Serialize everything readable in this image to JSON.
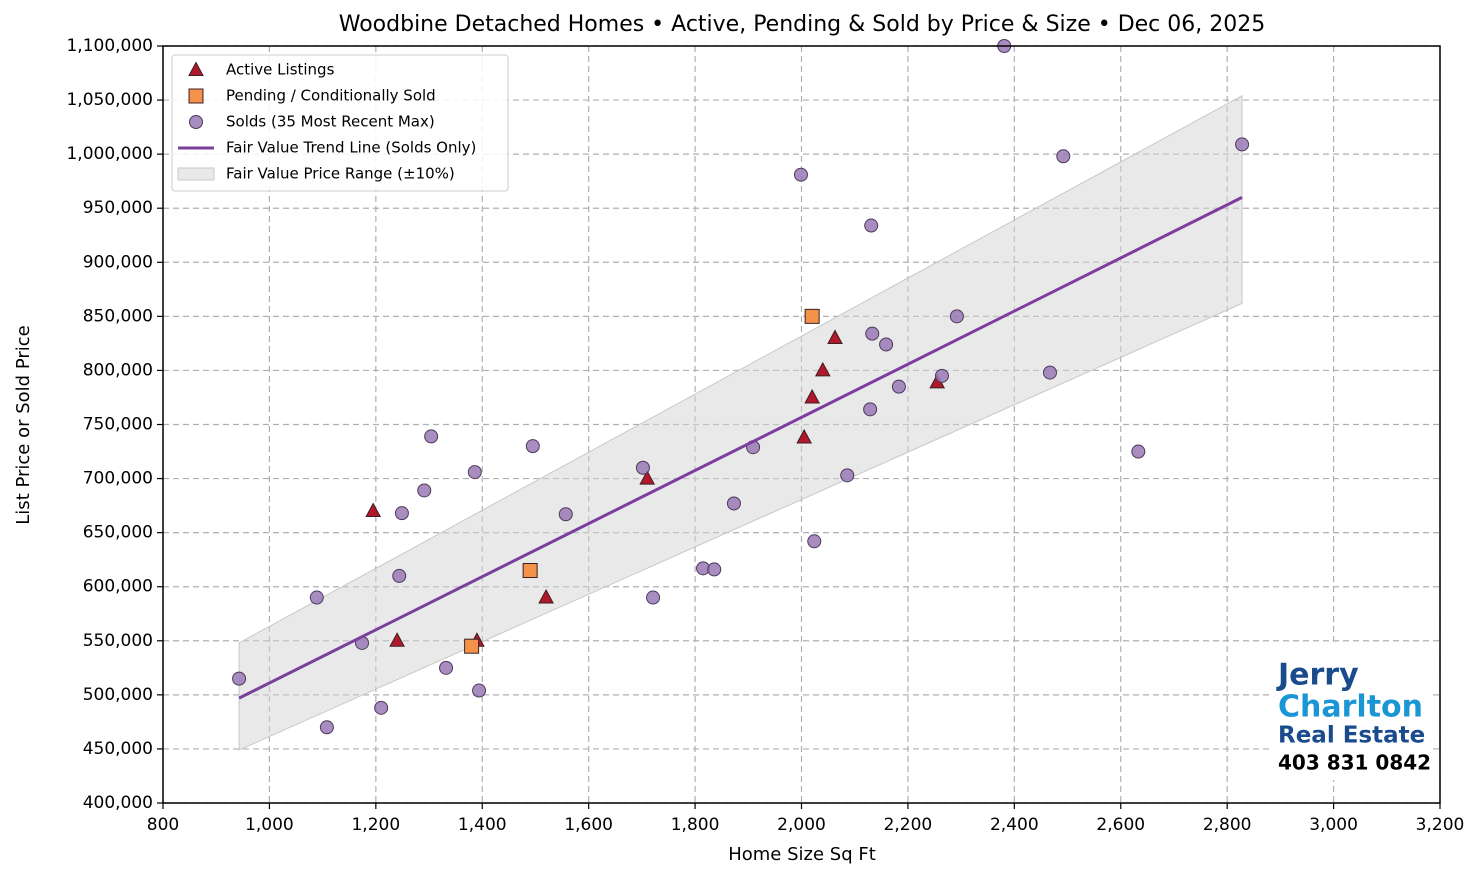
{
  "chart_data": {
    "type": "scatter",
    "title": "Woodbine Detached Homes • Active, Pending & Sold by Price & Size • Dec 06, 2025",
    "x_label": "Home Size Sq Ft",
    "y_label": "List Price or Sold Price",
    "xlim": [
      800,
      3200
    ],
    "ylim": [
      400000,
      1100000
    ],
    "xticks": [
      800,
      {
        "value": 1000,
        "label": "1,000"
      },
      {
        "value": 1200,
        "label": "1,200"
      },
      {
        "value": 1400,
        "label": "1,400"
      },
      {
        "value": 1600,
        "label": "1,600"
      },
      {
        "value": 1800,
        "label": "1,800"
      },
      {
        "value": 2000,
        "label": "2,000"
      },
      {
        "value": 2200,
        "label": "2,200"
      },
      {
        "value": 2400,
        "label": "2,400"
      },
      {
        "value": 2600,
        "label": "2,600"
      },
      {
        "value": 2800,
        "label": "2,800"
      },
      {
        "value": 3000,
        "label": "3,000"
      },
      {
        "value": 3200,
        "label": "3,200"
      }
    ],
    "yticks": [
      {
        "value": 400000,
        "label": "400,000"
      },
      {
        "value": 450000,
        "label": "450,000"
      },
      {
        "value": 500000,
        "label": "500,000"
      },
      {
        "value": 550000,
        "label": "550,000"
      },
      {
        "value": 600000,
        "label": "600,000"
      },
      {
        "value": 650000,
        "label": "650,000"
      },
      {
        "value": 700000,
        "label": "700,000"
      },
      {
        "value": 750000,
        "label": "750,000"
      },
      {
        "value": 800000,
        "label": "800,000"
      },
      {
        "value": 850000,
        "label": "850,000"
      },
      {
        "value": 900000,
        "label": "900,000"
      },
      {
        "value": 950000,
        "label": "950,000"
      },
      {
        "value": 1000000,
        "label": "1,000,000"
      },
      {
        "value": 1050000,
        "label": "1,050,000"
      },
      {
        "value": 1100000,
        "label": "1,100,000"
      }
    ],
    "grid": true,
    "legend": "upper left",
    "series": [
      {
        "name": "Active Listings",
        "color": "#b2182b",
        "marker": "triangle",
        "x": [
          1195,
          1240,
          1390,
          1520,
          1710,
          2005,
          2020,
          2040,
          2063,
          2255
        ],
        "values": [
          670000,
          550000,
          550000,
          590000,
          700000,
          738000,
          775000,
          800000,
          830000,
          789000
        ]
      },
      {
        "name": "Pending / Conditionally Sold",
        "color": "#f4924a",
        "marker": "square",
        "x": [
          2020,
          1490,
          1380
        ],
        "values": [
          850000,
          615000,
          545000
        ]
      },
      {
        "name": "Solds (35 Most Recent Max)",
        "color": "#9b79b5",
        "marker": "circle",
        "x": [
          943,
          1108,
          1089,
          1174,
          1210,
          1244,
          1249,
          1291,
          1304,
          1332,
          1386,
          1394,
          1495,
          1557,
          1702,
          1721,
          1815,
          1836,
          1873,
          1909,
          1999,
          2024,
          2086,
          2129,
          2131,
          2133,
          2159,
          2183,
          2264,
          2292,
          2381,
          2467,
          2492,
          2633,
          2828
        ],
        "values": [
          515000,
          470000,
          590000,
          548000,
          488000,
          610000,
          668000,
          689000,
          739000,
          525000,
          706000,
          504000,
          730000,
          667000,
          710000,
          590000,
          617000,
          616000,
          677000,
          729000,
          981000,
          642000,
          703000,
          764000,
          934000,
          834000,
          824000,
          785000,
          795000,
          850000,
          1100000,
          798000,
          998000,
          725000,
          1009000
        ]
      },
      {
        "name": "Fair Value Trend Line (Solds Only)",
        "color": "#7b3f9e",
        "marker": "line",
        "x": [
          943,
          2828
        ],
        "values": [
          497000,
          960000
        ]
      }
    ],
    "band": {
      "name": "Fair Value Price Range (±10%)",
      "color": "#d3d3d3",
      "x": [
        943,
        2828
      ],
      "lower": [
        449000,
        862000
      ],
      "upper": [
        548000,
        1054000
      ]
    }
  },
  "logo": {
    "line1": "Jerry",
    "line2": "Charlton",
    "line3": "Real Estate",
    "phone": "403 831 0842"
  }
}
